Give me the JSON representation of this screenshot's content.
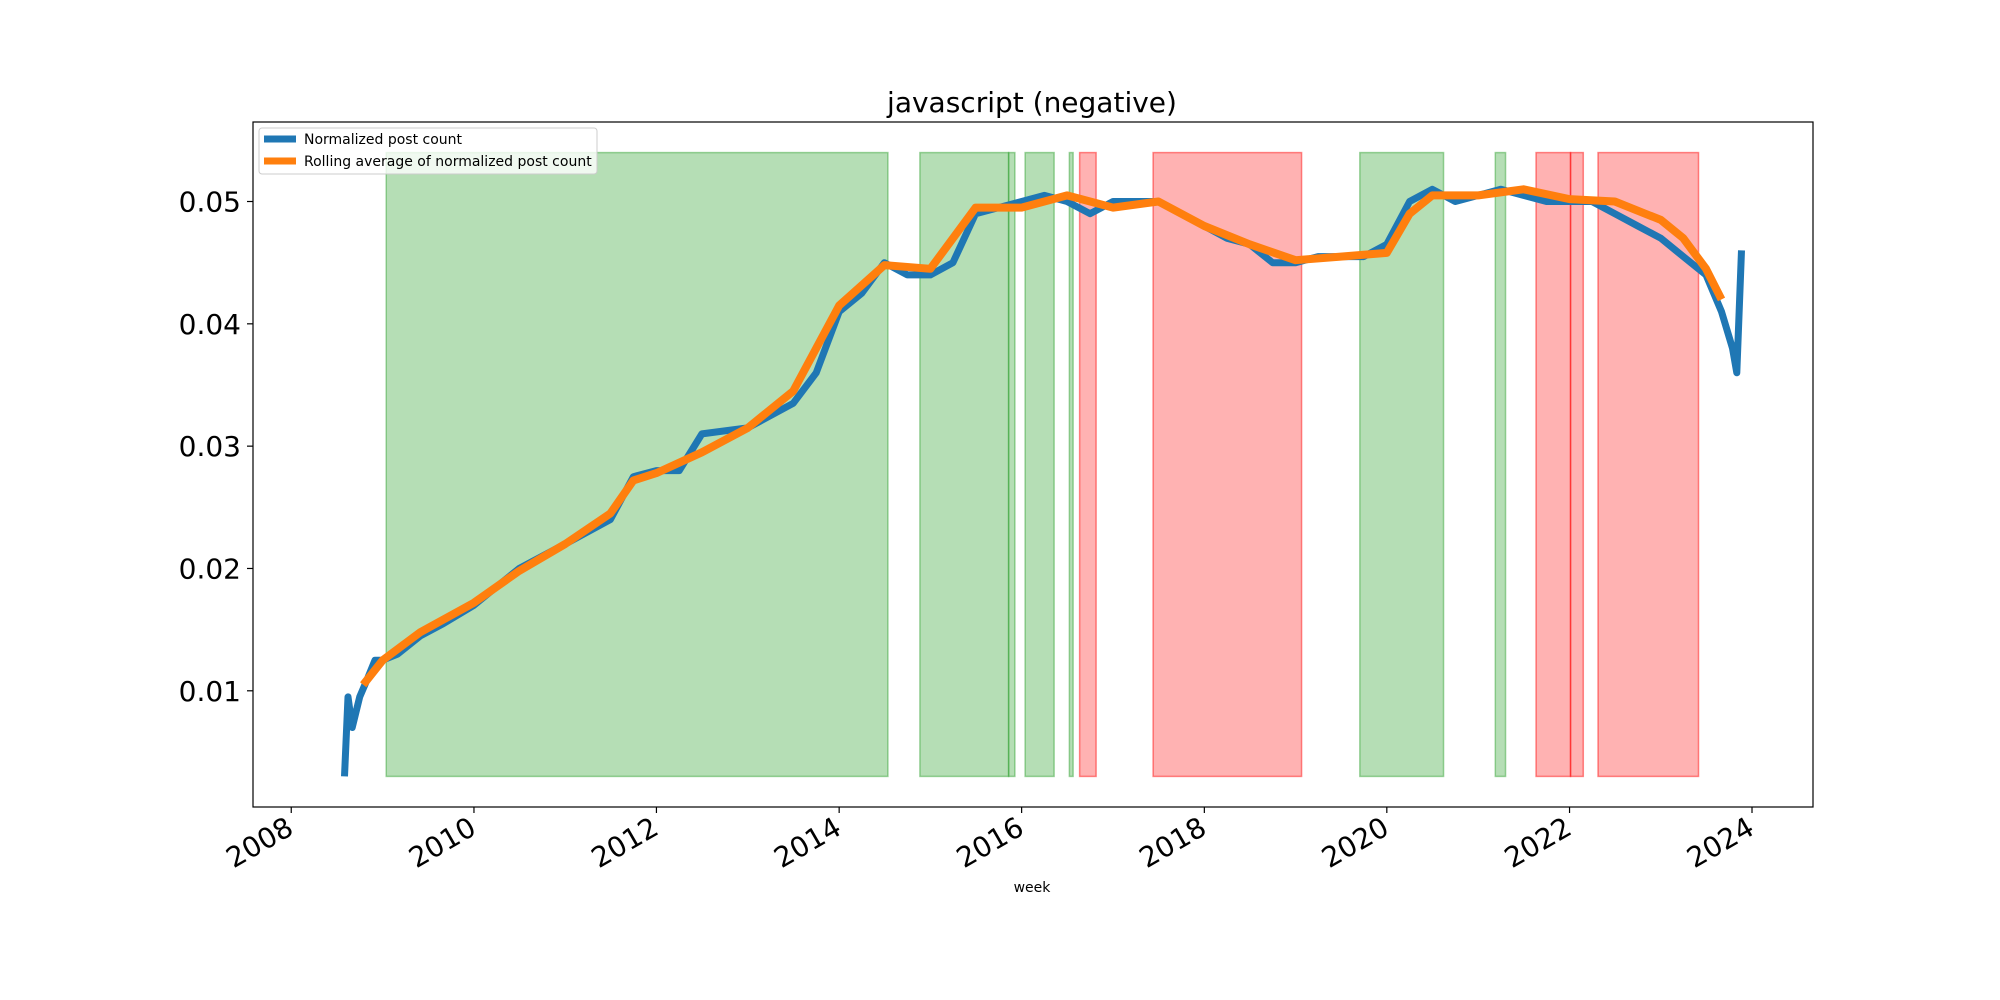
{
  "chart_data": {
    "type": "line",
    "title": "javascript (negative)",
    "xlabel": "week",
    "ylabel": "",
    "xlim": [
      "2007-08-01",
      "2024-09-01"
    ],
    "ylim": [
      0.0005,
      0.0565
    ],
    "x_ticks": [
      "2008",
      "2010",
      "2012",
      "2014",
      "2016",
      "2018",
      "2020",
      "2022",
      "2024"
    ],
    "y_ticks": [
      "0.01",
      "0.02",
      "0.03",
      "0.04",
      "0.05"
    ],
    "legend": {
      "placement": "top-left",
      "entries": [
        "Normalized post count",
        "Rolling average of normalized post count"
      ]
    },
    "colors": {
      "post_count": "#1f77b4",
      "rolling": "#ff7f0e",
      "positive_span": "#2ca02c",
      "negative_span": "#ff0000"
    },
    "series": [
      {
        "name": "Normalized post count",
        "x": [
          "2008-08-01",
          "2008-08-15",
          "2008-09-01",
          "2008-10-01",
          "2008-11-01",
          "2008-12-01",
          "2009-01-01",
          "2009-03-01",
          "2009-06-01",
          "2009-09-01",
          "2010-01-01",
          "2010-04-01",
          "2010-07-01",
          "2011-01-01",
          "2011-07-01",
          "2011-10-01",
          "2012-01-01",
          "2012-04-01",
          "2012-07-01",
          "2013-01-01",
          "2013-07-01",
          "2013-10-01",
          "2014-01-01",
          "2014-04-01",
          "2014-07-01",
          "2014-10-01",
          "2015-01-01",
          "2015-04-01",
          "2015-07-01",
          "2015-10-01",
          "2016-01-01",
          "2016-04-01",
          "2016-07-01",
          "2016-10-01",
          "2017-01-01",
          "2017-04-01",
          "2017-07-01",
          "2017-10-01",
          "2018-01-01",
          "2018-04-01",
          "2018-07-01",
          "2018-10-01",
          "2019-01-01",
          "2019-04-01",
          "2019-07-01",
          "2019-10-01",
          "2020-01-01",
          "2020-04-01",
          "2020-07-01",
          "2020-10-01",
          "2021-01-01",
          "2021-04-01",
          "2021-07-01",
          "2021-10-01",
          "2022-01-01",
          "2022-04-01",
          "2022-07-01",
          "2022-10-01",
          "2023-01-01",
          "2023-04-01",
          "2023-07-01",
          "2023-09-01",
          "2023-10-15",
          "2023-11-01",
          "2023-11-20"
        ],
        "y": [
          0.003,
          0.0095,
          0.007,
          0.0095,
          0.011,
          0.0125,
          0.0125,
          0.013,
          0.0145,
          0.0155,
          0.017,
          0.0185,
          0.02,
          0.022,
          0.024,
          0.0275,
          0.028,
          0.028,
          0.031,
          0.0315,
          0.0335,
          0.036,
          0.041,
          0.0425,
          0.045,
          0.044,
          0.044,
          0.045,
          0.049,
          0.0495,
          0.05,
          0.0505,
          0.05,
          0.049,
          0.05,
          0.05,
          0.05,
          0.049,
          0.048,
          0.047,
          0.0465,
          0.045,
          0.045,
          0.0455,
          0.0455,
          0.0455,
          0.0465,
          0.05,
          0.051,
          0.05,
          0.0505,
          0.051,
          0.0505,
          0.05,
          0.05,
          0.05,
          0.049,
          0.048,
          0.047,
          0.0455,
          0.044,
          0.041,
          0.038,
          0.036,
          0.046
        ]
      },
      {
        "name": "Rolling average of normalized post count",
        "x": [
          "2008-10-15",
          "2009-01-01",
          "2009-06-01",
          "2010-01-01",
          "2010-07-01",
          "2011-01-01",
          "2011-07-01",
          "2011-10-01",
          "2012-01-01",
          "2012-07-01",
          "2013-01-01",
          "2013-07-01",
          "2014-01-01",
          "2014-07-01",
          "2015-01-01",
          "2015-07-01",
          "2016-01-01",
          "2016-07-01",
          "2017-01-01",
          "2017-07-01",
          "2018-01-01",
          "2018-07-01",
          "2019-01-01",
          "2019-07-01",
          "2020-01-01",
          "2020-04-01",
          "2020-07-01",
          "2021-01-01",
          "2021-07-01",
          "2022-01-01",
          "2022-07-01",
          "2023-01-01",
          "2023-04-01",
          "2023-07-01",
          "2023-09-01"
        ],
        "y": [
          0.0105,
          0.0125,
          0.0148,
          0.0172,
          0.0198,
          0.022,
          0.0245,
          0.0272,
          0.0278,
          0.0295,
          0.0315,
          0.0345,
          0.0415,
          0.0448,
          0.0445,
          0.0495,
          0.0495,
          0.0505,
          0.0495,
          0.05,
          0.048,
          0.0465,
          0.0452,
          0.0455,
          0.0458,
          0.049,
          0.0505,
          0.0505,
          0.051,
          0.0502,
          0.05,
          0.0485,
          0.047,
          0.0445,
          0.042
        ]
      }
    ],
    "spans": [
      {
        "kind": "positive",
        "start": "2009-01-15",
        "end": "2014-07-15"
      },
      {
        "kind": "positive",
        "start": "2014-11-20",
        "end": "2015-11-10"
      },
      {
        "kind": "positive",
        "start": "2015-11-10",
        "end": "2015-12-05"
      },
      {
        "kind": "positive",
        "start": "2016-01-15",
        "end": "2016-05-10"
      },
      {
        "kind": "positive",
        "start": "2016-07-10",
        "end": "2016-07-25"
      },
      {
        "kind": "negative",
        "start": "2016-08-20",
        "end": "2016-10-25"
      },
      {
        "kind": "negative",
        "start": "2017-06-10",
        "end": "2019-01-25"
      },
      {
        "kind": "positive",
        "start": "2019-09-15",
        "end": "2020-08-15"
      },
      {
        "kind": "positive",
        "start": "2021-03-10",
        "end": "2021-04-20"
      },
      {
        "kind": "negative",
        "start": "2021-08-20",
        "end": "2022-01-05"
      },
      {
        "kind": "negative",
        "start": "2022-01-05",
        "end": "2022-02-25"
      },
      {
        "kind": "negative",
        "start": "2022-04-25",
        "end": "2023-06-01"
      }
    ]
  }
}
